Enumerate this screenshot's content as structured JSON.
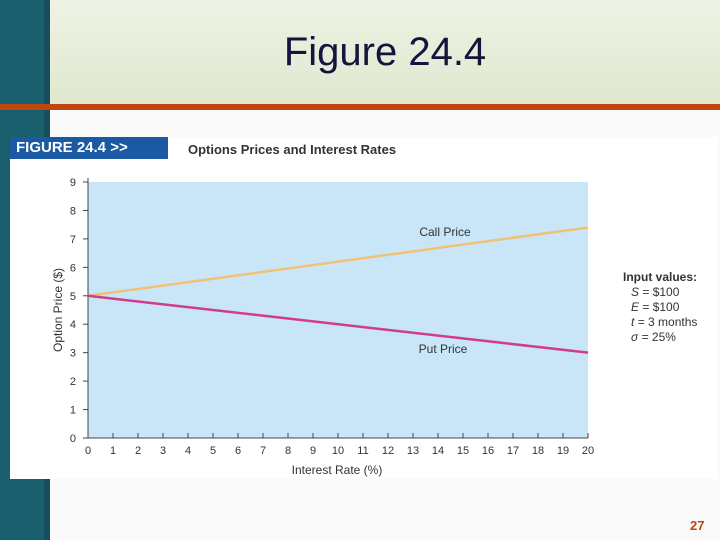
{
  "slide": {
    "title": "Figure 24.4",
    "page_number": "27"
  },
  "figure": {
    "tag": "FIGURE 24.4  >>",
    "caption": "Options Prices and Interest Rates"
  },
  "inputs": {
    "heading": "Input values:",
    "rows": [
      {
        "symbol": "S",
        "value": "= $100"
      },
      {
        "symbol": "E",
        "value": "= $100"
      },
      {
        "symbol": "t",
        "value": "= 3 months"
      },
      {
        "symbol": "σ",
        "value": "= 25%"
      }
    ]
  },
  "colors": {
    "plot_background": "#c8e6f7",
    "call_line": "#f2c077",
    "put_line": "#d23c8c",
    "accent": "#c0470f",
    "sidebar": "#1a5f6e",
    "figure_tag": "#1b5aa3"
  },
  "chart_data": {
    "type": "line",
    "title": "Options Prices and Interest Rates",
    "xlabel": "Interest Rate (%)",
    "ylabel": "Option Price ($)",
    "x": [
      0,
      20
    ],
    "xlim": [
      0,
      20
    ],
    "ylim": [
      0,
      9
    ],
    "xticks": [
      "0",
      "1",
      "2",
      "3",
      "4",
      "5",
      "6",
      "7",
      "8",
      "9",
      "10",
      "11",
      "12",
      "13",
      "14",
      "15",
      "16",
      "17",
      "18",
      "19",
      "20"
    ],
    "yticks": [
      "0",
      "1",
      "2",
      "3",
      "4",
      "5",
      "6",
      "7",
      "8",
      "9"
    ],
    "grid": false,
    "series": [
      {
        "name": "Call Price",
        "x": [
          0,
          20
        ],
        "values": [
          5.0,
          7.4
        ]
      },
      {
        "name": "Put Price",
        "x": [
          0,
          20
        ],
        "values": [
          5.0,
          3.0
        ]
      }
    ],
    "annotations": [
      {
        "text": "Call Price",
        "series": "Call Price"
      },
      {
        "text": "Put Price",
        "series": "Put Price"
      }
    ]
  }
}
